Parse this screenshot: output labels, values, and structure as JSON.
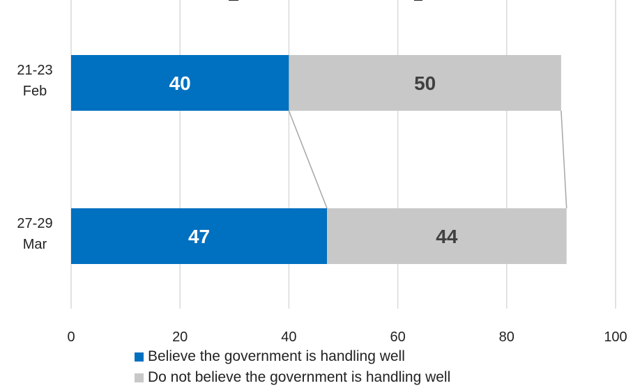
{
  "chart_data": {
    "type": "bar",
    "orientation": "horizontal",
    "stacked": true,
    "categories": [
      "21-23 Feb",
      "27-29 Mar"
    ],
    "category_lines": [
      [
        "21-23",
        "Feb"
      ],
      [
        "27-29",
        "Mar"
      ]
    ],
    "series": [
      {
        "name": "Believe the government is handling well",
        "values": [
          40,
          47
        ],
        "color": "#0070C0",
        "label_color": "#ffffff"
      },
      {
        "name": "Do not believe the government is handling well",
        "values": [
          50,
          44
        ],
        "color": "#C8C8C8",
        "label_color": "#404040"
      }
    ],
    "xlim": [
      0,
      100
    ],
    "xticks": [
      0,
      20,
      40,
      60,
      80,
      100
    ],
    "grid": true,
    "series_lines": true,
    "legend_position": "bottom"
  }
}
